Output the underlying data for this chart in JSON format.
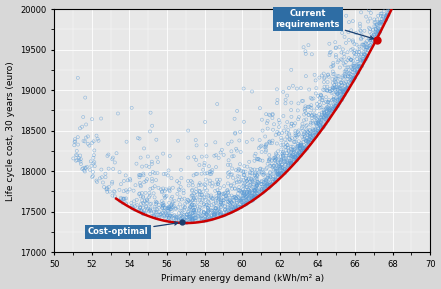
{
  "title": "",
  "xlabel": "Primary energy demand (kWh/m² a)",
  "ylabel": "Life cycle cost, 30 years (euro)",
  "xlim": [
    50,
    70
  ],
  "ylim": [
    17000,
    20000
  ],
  "xticks": [
    50,
    52,
    54,
    56,
    58,
    60,
    62,
    64,
    66,
    68,
    70
  ],
  "yticks": [
    17000,
    17500,
    18000,
    18500,
    19000,
    19500,
    20000
  ],
  "bg_color": "#e8e8e8",
  "grid_color": "#ffffff",
  "scatter_color": "#5b9bd5",
  "curve_color": "#cc0000",
  "cost_optimal_point": [
    56.8,
    17370
  ],
  "current_req_point": [
    67.2,
    19620
  ],
  "cost_optimal_label": "Cost-optimal",
  "current_req_label": "Current\nrequirements",
  "annotation_box_color": "#2e6da4",
  "annotation_text_color": "#ffffff",
  "seed": 42,
  "n_points": 2500,
  "curve_x0": 57.0,
  "curve_a": 22.0,
  "curve_ymin": 17360,
  "curve_xstart": 53.3
}
